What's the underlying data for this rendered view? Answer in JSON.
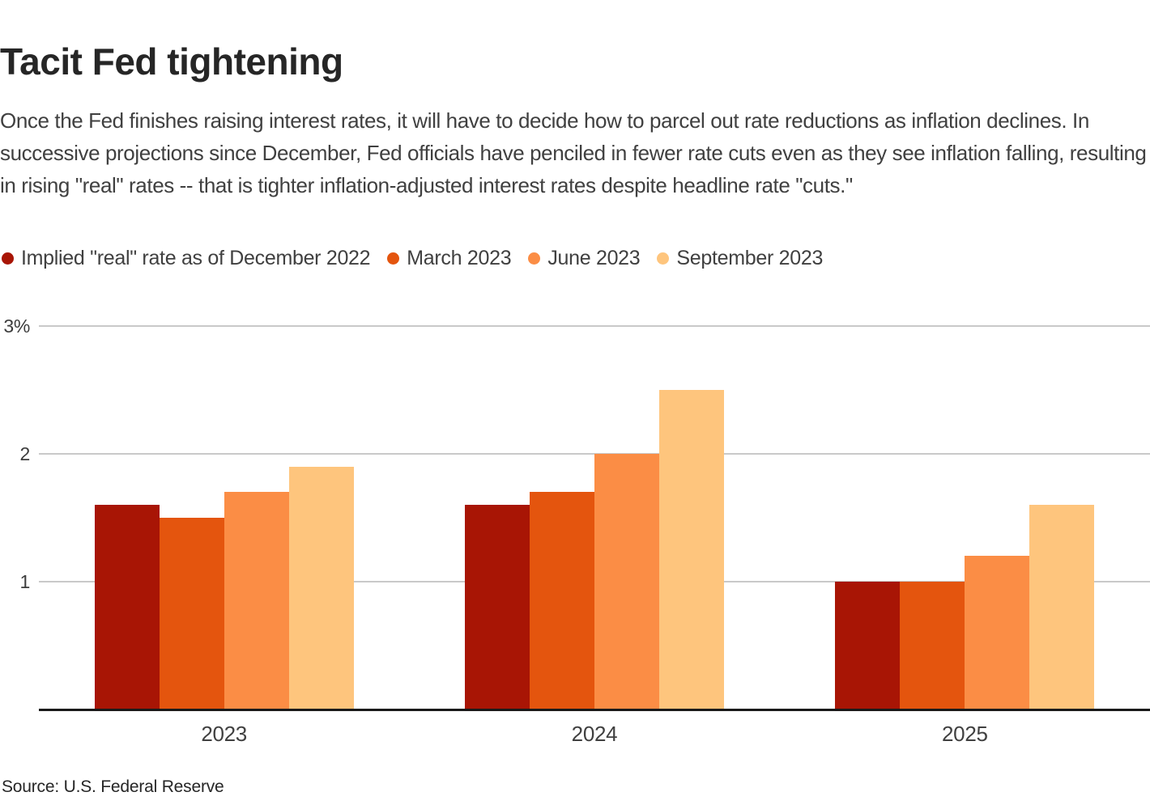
{
  "header": {
    "title": "Tacit Fed tightening",
    "subtitle": "Once the Fed finishes raising interest rates, it will have to decide how to parcel out rate reductions as inflation declines. In successive projections since December, Fed officials have penciled in fewer rate cuts even as they see inflation falling, resulting in rising \"real\" rates -- that is tighter inflation-adjusted interest rates despite headline rate \"cuts.\""
  },
  "source_line": "Source: U.S. Federal Reserve",
  "colors": {
    "title_text": "#262626",
    "body_text": "#404040",
    "gridline": "#c9c9c9",
    "axis_line": "#1a1a1a"
  },
  "chart_data": {
    "type": "bar",
    "title": "Tacit Fed tightening",
    "categories": [
      "2023",
      "2024",
      "2025"
    ],
    "series": [
      {
        "name": "Implied \"real\" rate as of December 2022",
        "color": "#a81505",
        "values": [
          1.6,
          1.6,
          1.0
        ]
      },
      {
        "name": "March 2023",
        "color": "#e4550e",
        "values": [
          1.5,
          1.7,
          1.0
        ]
      },
      {
        "name": "June 2023",
        "color": "#fb8d45",
        "values": [
          1.7,
          2.0,
          1.2
        ]
      },
      {
        "name": "September 2023",
        "color": "#fec57d",
        "values": [
          1.9,
          2.5,
          1.6
        ]
      }
    ],
    "xlabel": "",
    "ylabel": "",
    "ylim": [
      0,
      3.2
    ],
    "yticks": [
      {
        "value": 1,
        "label": "1"
      },
      {
        "value": 2,
        "label": "2"
      },
      {
        "value": 3,
        "label": "3%"
      }
    ],
    "grid": true,
    "legend_position": "top-left",
    "units": "percent, inflation-adjusted interest rate"
  }
}
